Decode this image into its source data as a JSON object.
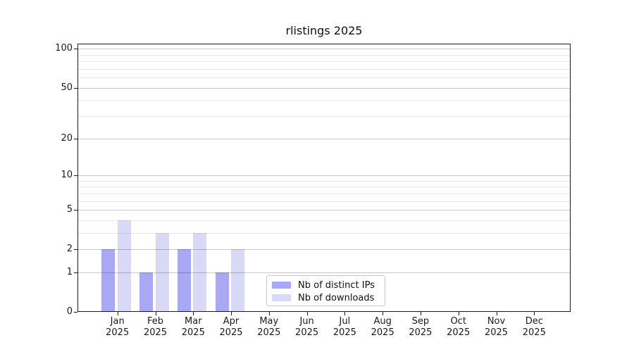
{
  "title": "rlistings 2025",
  "chart_data": {
    "type": "bar",
    "title": "rlistings 2025",
    "categories": [
      "Jan",
      "Feb",
      "Mar",
      "Apr",
      "May",
      "Jun",
      "Jul",
      "Aug",
      "Sep",
      "Oct",
      "Nov",
      "Dec"
    ],
    "category_year": "2025",
    "series": [
      {
        "name": "Nb of distinct IPs",
        "color": "#a8a8f5",
        "values": [
          2,
          1,
          2,
          1,
          0,
          0,
          0,
          0,
          0,
          0,
          0,
          0
        ]
      },
      {
        "name": "Nb of downloads",
        "color": "#d9d9f7",
        "values": [
          4,
          3,
          3,
          2,
          0,
          0,
          0,
          0,
          0,
          0,
          0,
          0
        ]
      }
    ],
    "xlabel": "",
    "ylabel": "",
    "yscale": "log10(value+1)",
    "ylim": [
      0,
      111
    ],
    "y_major_ticks": [
      0,
      1,
      2,
      5,
      10,
      20,
      50,
      100
    ],
    "y_minor_gridlines": [
      3,
      4,
      6,
      7,
      8,
      9,
      30,
      40,
      60,
      70,
      80,
      90
    ],
    "grid": "horizontal, drawn over bars",
    "legend_position": "bottom-center",
    "colors": {
      "distinct_ips_bar": "#a8a8f5",
      "downloads_bar": "#d9d9f7",
      "major_grid": "rgba(0,0,0,0.22)",
      "minor_grid": "rgba(0,0,0,0.09)",
      "spine": "#1a1a1a",
      "background": "#ffffff"
    }
  },
  "legend": {
    "items": [
      {
        "label": "Nb of distinct IPs",
        "color": "#a8a8f5"
      },
      {
        "label": "Nb of downloads",
        "color": "#d9d9f7"
      }
    ]
  }
}
